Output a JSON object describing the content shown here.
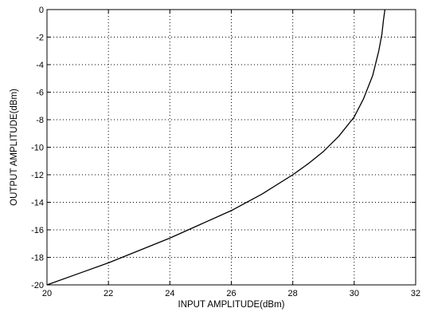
{
  "chart_data": {
    "type": "line",
    "title": "",
    "xlabel": "INPUT AMPLITUDE(dBm)",
    "ylabel": "OUTPUT AMPLITUDE(dBm)",
    "xlim": [
      20,
      32
    ],
    "ylim": [
      -20,
      0
    ],
    "xticks": [
      20,
      22,
      24,
      26,
      28,
      30,
      32
    ],
    "yticks": [
      0,
      -2,
      -4,
      -6,
      -8,
      -10,
      -12,
      -14,
      -16,
      -18,
      -20
    ],
    "grid": true,
    "legend": "none",
    "line_color": "#000000",
    "series": [
      {
        "x": [
          20.0,
          21.0,
          22.0,
          23.0,
          24.0,
          25.0,
          26.0,
          27.0,
          28.0,
          28.5,
          29.0,
          29.5,
          30.0,
          30.3,
          30.6,
          30.8,
          30.9,
          30.95,
          31.0
        ],
        "y": [
          -20.0,
          -19.2,
          -18.4,
          -17.5,
          -16.6,
          -15.6,
          -14.6,
          -13.4,
          -12.0,
          -11.2,
          -10.3,
          -9.2,
          -7.8,
          -6.5,
          -4.8,
          -3.0,
          -1.8,
          -0.8,
          0.0
        ]
      }
    ]
  }
}
